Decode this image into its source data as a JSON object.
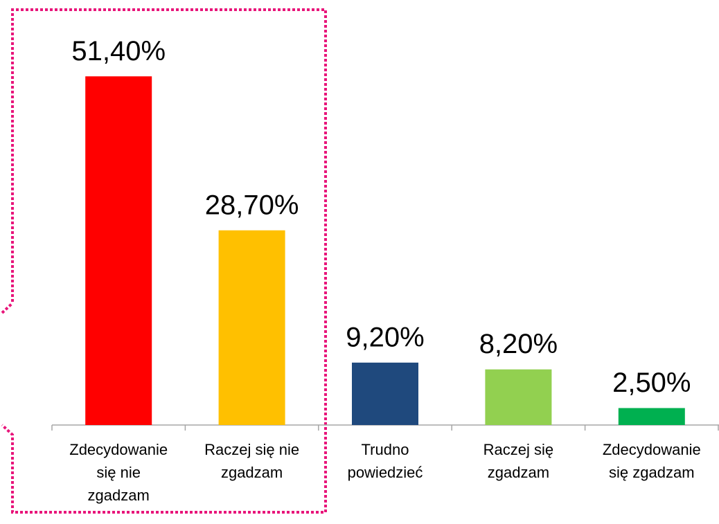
{
  "chart_data": {
    "type": "bar",
    "categories": [
      [
        "Zdecydowanie",
        "się nie",
        "zgadzam"
      ],
      [
        "Raczej się nie",
        "zgadzam"
      ],
      [
        "Trudno",
        "powiedzieć"
      ],
      [
        "Raczej się",
        "zgadzam"
      ],
      [
        "Zdecydowanie",
        "się zgadzam"
      ]
    ],
    "values": [
      51.4,
      28.7,
      9.2,
      8.2,
      2.5
    ],
    "value_labels": [
      "51,40%",
      "28,70%",
      "9,20%",
      "8,20%",
      "2,50%"
    ],
    "colors": [
      "#ff0000",
      "#ffc000",
      "#1f497d",
      "#92d050",
      "#00b050"
    ],
    "ylim": [
      0,
      60
    ]
  }
}
